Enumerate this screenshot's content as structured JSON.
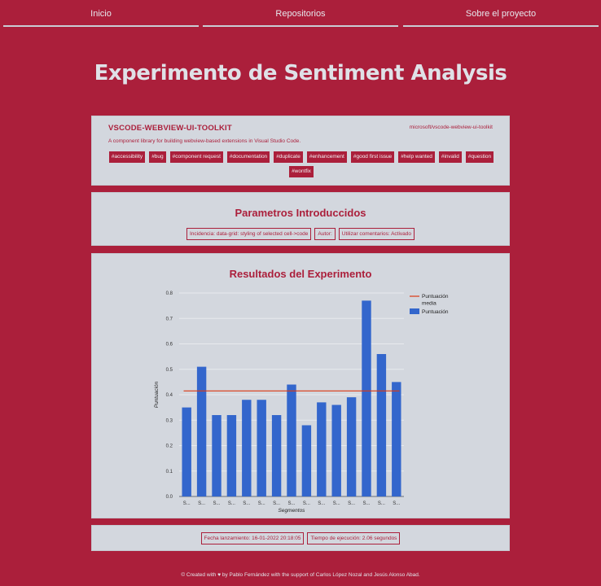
{
  "nav": {
    "items": [
      {
        "label": "Inicio"
      },
      {
        "label": "Repositorios"
      },
      {
        "label": "Sobre el proyecto"
      }
    ]
  },
  "page": {
    "title": "Experimento de Sentiment Analysis"
  },
  "repo": {
    "name": "VSCODE-WEBVIEW-UI-TOOLKIT",
    "link": "microsoft/vscode-webview-ui-toolkit",
    "description": "A component library for building webview-based extensions in Visual Studio Code.",
    "labels": [
      "#accessibility",
      "#bug",
      "#component request",
      "#documentation",
      "#duplicate",
      "#enhancement",
      "#good first issue",
      "#help wanted",
      "#invalid",
      "#question",
      "#wontfix"
    ]
  },
  "parameters": {
    "title": "Parametros Introduccidos",
    "items": [
      "Incidencia: data-grid: styling of selected cell->code",
      "Autor:",
      "Utilizar comentarios: Activado"
    ]
  },
  "results": {
    "title": "Resultados del Experimento"
  },
  "chart_data": {
    "type": "bar",
    "categories": [
      "S...",
      "S...",
      "S...",
      "S...",
      "S...",
      "S...",
      "S...",
      "S...",
      "S...",
      "S...",
      "S...",
      "S...",
      "S...",
      "S...",
      "S..."
    ],
    "series": [
      {
        "name": "Puntuación",
        "values": [
          0.35,
          0.51,
          0.32,
          0.32,
          0.38,
          0.38,
          0.32,
          0.44,
          0.28,
          0.37,
          0.36,
          0.39,
          0.77,
          0.56,
          0.45
        ],
        "color": "#3366cc"
      },
      {
        "name": "Puntuación media",
        "value": 0.415,
        "color": "#dc3912",
        "type": "line"
      }
    ],
    "xlabel": "Segmentos",
    "ylabel": "Puntuación",
    "ylim": [
      0,
      0.8
    ],
    "yticks": [
      "0.0",
      "0.1",
      "0.2",
      "0.3",
      "0.4",
      "0.5",
      "0.6",
      "0.7",
      "0.8"
    ],
    "grid": true,
    "legend_position": "top-right",
    "legend": [
      "Puntuación media",
      "Puntuación"
    ]
  },
  "execution": {
    "launch_date": "Fecha lanzamiento: 16-01-2022 20:18:05",
    "duration": "Tiempo de ejecución: 2.06 segundos"
  },
  "footer": {
    "text": "© Created with ♥ by Pablo Fernández with the support of Carlos López Nozal and Jesús Alonso Abad."
  },
  "colors": {
    "background": "#ab1f3b",
    "card": "#d3d7de",
    "accent": "#ab1f3b"
  }
}
